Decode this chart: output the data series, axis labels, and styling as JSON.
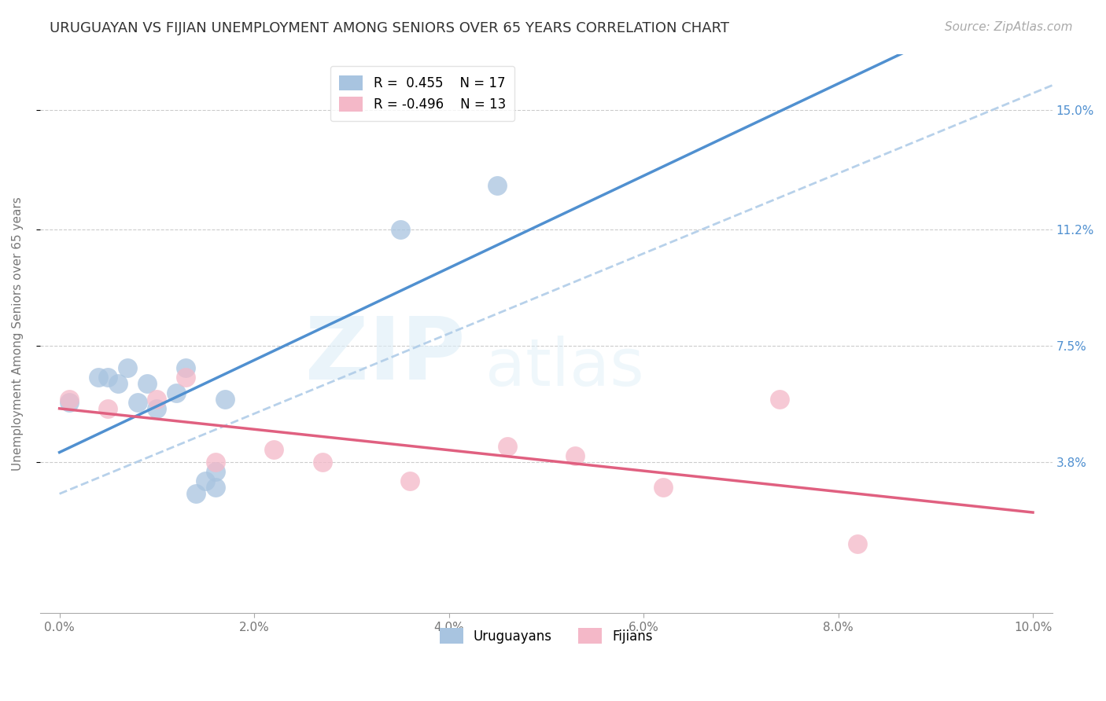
{
  "title": "URUGUAYAN VS FIJIAN UNEMPLOYMENT AMONG SENIORS OVER 65 YEARS CORRELATION CHART",
  "source": "Source: ZipAtlas.com",
  "ylabel": "Unemployment Among Seniors over 65 years",
  "xlabel_ticks": [
    "0.0%",
    "2.0%",
    "4.0%",
    "6.0%",
    "8.0%",
    "10.0%"
  ],
  "ytick_labels": [
    "15.0%",
    "11.2%",
    "7.5%",
    "3.8%"
  ],
  "ytick_values": [
    0.15,
    0.112,
    0.075,
    0.038
  ],
  "xlim": [
    -0.002,
    0.102
  ],
  "ylim": [
    -0.01,
    0.168
  ],
  "watermark_zip": "ZIP",
  "watermark_atlas": "atlas",
  "legend_blue_r": "R =  0.455",
  "legend_blue_n": "N = 17",
  "legend_pink_r": "R = -0.496",
  "legend_pink_n": "N = 13",
  "uruguayan_x": [
    0.001,
    0.004,
    0.005,
    0.006,
    0.007,
    0.008,
    0.009,
    0.01,
    0.012,
    0.013,
    0.014,
    0.015,
    0.016,
    0.016,
    0.017,
    0.035,
    0.045
  ],
  "uruguayan_y": [
    0.057,
    0.065,
    0.065,
    0.063,
    0.068,
    0.057,
    0.063,
    0.055,
    0.06,
    0.068,
    0.028,
    0.032,
    0.03,
    0.035,
    0.058,
    0.112,
    0.126
  ],
  "fijian_x": [
    0.001,
    0.005,
    0.01,
    0.013,
    0.016,
    0.022,
    0.027,
    0.036,
    0.046,
    0.053,
    0.062,
    0.074,
    0.082
  ],
  "fijian_y": [
    0.058,
    0.055,
    0.058,
    0.065,
    0.038,
    0.042,
    0.038,
    0.032,
    0.043,
    0.04,
    0.03,
    0.058,
    0.012
  ],
  "blue_scatter_color": "#a8c4e0",
  "pink_scatter_color": "#f4b8c8",
  "blue_line_color": "#5090d0",
  "pink_line_color": "#e06080",
  "blue_dash_color": "#b0cce8",
  "title_fontsize": 13,
  "source_fontsize": 11,
  "label_fontsize": 11,
  "tick_fontsize": 11,
  "legend_fontsize": 12,
  "scatter_size": 320
}
